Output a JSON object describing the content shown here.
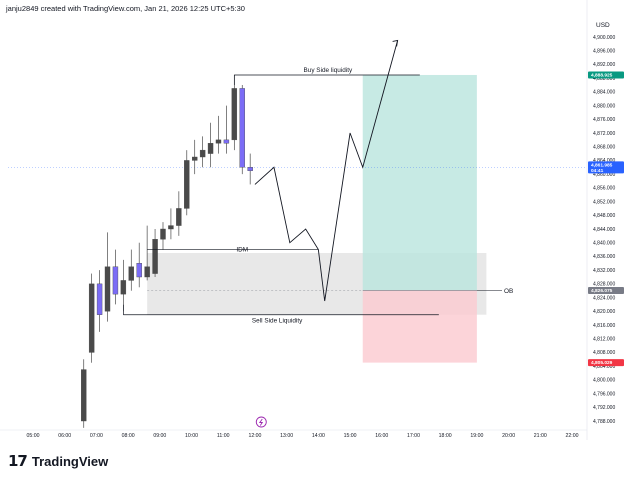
{
  "header": {
    "attribution": "janju2849 created with TradingView.com, Jan 21, 2026 12:25 UTC+5:30"
  },
  "footer": {
    "logo_mark": "17",
    "brand": "TradingView"
  },
  "colors": {
    "bull": "#4a4a4a",
    "bear": "#7b6cf6",
    "zone": "#dcdcdc",
    "profit": "#b9e5dd",
    "loss": "#fbc9cf",
    "line": "#131722",
    "tag_green": "#089981",
    "tag_blue": "#2962ff",
    "tag_grey": "#787b86",
    "tag_red": "#f23645"
  },
  "chart_data": {
    "type": "candlestick",
    "currency_label": "USD",
    "y_range": [
      4786,
      4904
    ],
    "y_ticks": [
      "4,900.000",
      "4,896.000",
      "4,892.000",
      "4,888.000",
      "4,884.000",
      "4,880.000",
      "4,876.000",
      "4,872.000",
      "4,868.000",
      "4,864.000",
      "4,860.000",
      "4,856.000",
      "4,852.000",
      "4,848.000",
      "4,844.000",
      "4,840.000",
      "4,836.000",
      "4,832.000",
      "4,828.000",
      "4,824.000",
      "4,820.000",
      "4,816.000",
      "4,812.000",
      "4,808.000",
      "4,804.000",
      "4,800.000",
      "4,796.000",
      "4,792.000",
      "4,788.000"
    ],
    "time_labels": [
      "05:00",
      "06:00",
      "07:00",
      "08:00",
      "09:00",
      "10:00",
      "11:00",
      "12:00",
      "13:00",
      "14:00",
      "15:00",
      "16:00",
      "17:00",
      "18:00",
      "19:00",
      "20:00",
      "21:00",
      "22:00"
    ],
    "price_tags": [
      {
        "text": "4,888.925",
        "value": 4888.925,
        "color": "tag_green"
      },
      {
        "text": "4,861.985\n04:41",
        "value": 4861.985,
        "color": "tag_blue"
      },
      {
        "text": "4,826.075",
        "value": 4826.075,
        "color": "tag_grey"
      },
      {
        "text": "4,805.029",
        "value": 4805.029,
        "color": "tag_red"
      }
    ],
    "candles": [
      {
        "t": 6.6,
        "o": 4788,
        "h": 4806,
        "l": 4786,
        "c": 4803
      },
      {
        "t": 6.85,
        "o": 4808,
        "h": 4831,
        "l": 4805,
        "c": 4828
      },
      {
        "t": 7.1,
        "o": 4828,
        "h": 4832,
        "l": 4814,
        "c": 4819
      },
      {
        "t": 7.35,
        "o": 4820,
        "h": 4843,
        "l": 4817,
        "c": 4833
      },
      {
        "t": 7.6,
        "o": 4833,
        "h": 4838,
        "l": 4822,
        "c": 4825
      },
      {
        "t": 7.85,
        "o": 4825,
        "h": 4835,
        "l": 4820,
        "c": 4829
      },
      {
        "t": 8.1,
        "o": 4829,
        "h": 4838,
        "l": 4826,
        "c": 4833
      },
      {
        "t": 8.35,
        "o": 4834,
        "h": 4840,
        "l": 4827,
        "c": 4830
      },
      {
        "t": 8.6,
        "o": 4830,
        "h": 4845,
        "l": 4829,
        "c": 4833
      },
      {
        "t": 8.85,
        "o": 4831,
        "h": 4844,
        "l": 4830,
        "c": 4841
      },
      {
        "t": 9.1,
        "o": 4841,
        "h": 4846,
        "l": 4838,
        "c": 4844
      },
      {
        "t": 9.35,
        "o": 4844,
        "h": 4850,
        "l": 4841,
        "c": 4845
      },
      {
        "t": 9.6,
        "o": 4845,
        "h": 4855,
        "l": 4842,
        "c": 4850
      },
      {
        "t": 9.85,
        "o": 4850,
        "h": 4867,
        "l": 4848,
        "c": 4864
      },
      {
        "t": 10.1,
        "o": 4864,
        "h": 4870,
        "l": 4860,
        "c": 4865
      },
      {
        "t": 10.35,
        "o": 4865,
        "h": 4871,
        "l": 4862,
        "c": 4867
      },
      {
        "t": 10.6,
        "o": 4866,
        "h": 4875,
        "l": 4862,
        "c": 4869
      },
      {
        "t": 10.85,
        "o": 4869,
        "h": 4877,
        "l": 4866,
        "c": 4870
      },
      {
        "t": 11.1,
        "o": 4870,
        "h": 4880,
        "l": 4866,
        "c": 4869
      },
      {
        "t": 11.35,
        "o": 4870,
        "h": 4889,
        "l": 4867,
        "c": 4885
      },
      {
        "t": 11.6,
        "o": 4885,
        "h": 4886,
        "l": 4860,
        "c": 4862
      },
      {
        "t": 11.85,
        "o": 4862,
        "h": 4866,
        "l": 4857,
        "c": 4861
      }
    ],
    "annotations": [
      {
        "label": "Buy Side liquidity",
        "level": 4888.925
      },
      {
        "label": "IDM",
        "level": 4838
      },
      {
        "label": "Sell Side Liquidity",
        "level": 4819
      },
      {
        "label": "OB",
        "level": 4826
      }
    ],
    "ob_zone": {
      "top": 4837,
      "bottom": 4819
    },
    "position": {
      "entry": 4826.075,
      "target": 4888.925,
      "stop": 4805.029,
      "t_start": 15.4,
      "t_end": 19.0
    },
    "projection_path": [
      [
        12.0,
        4857
      ],
      [
        12.6,
        4862
      ],
      [
        13.1,
        4840
      ],
      [
        13.6,
        4844
      ],
      [
        14.0,
        4838
      ],
      [
        14.2,
        4823
      ],
      [
        15.0,
        4872
      ],
      [
        15.4,
        4862
      ],
      [
        16.5,
        4899
      ]
    ]
  }
}
